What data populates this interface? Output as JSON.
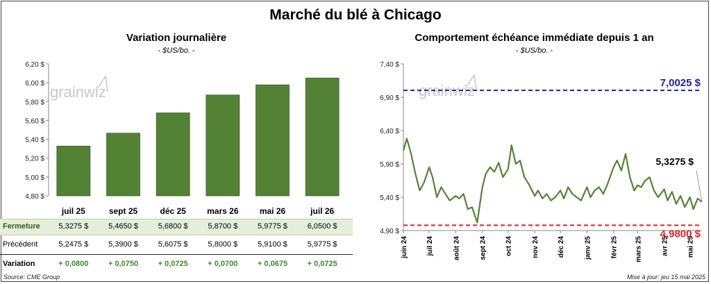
{
  "title": "Marché du blé à Chicago",
  "logo_text": "grainwiz",
  "chart_data": [
    {
      "type": "bar",
      "title": "Variation journalière",
      "subtitle": "- $US/bo. -",
      "categories": [
        "juil 25",
        "sept 25",
        "déc 25",
        "mars 26",
        "mai 26",
        "juil 26"
      ],
      "values": [
        5.3275,
        5.465,
        5.68,
        5.87,
        5.9775,
        6.05
      ],
      "ylim": [
        4.8,
        6.2
      ],
      "yticks": [
        "4,80 $",
        "5,00 $",
        "5,20 $",
        "5,40 $",
        "5,60 $",
        "5,80 $",
        "6,00 $",
        "6,20 $"
      ],
      "ytick_values": [
        4.8,
        5.0,
        5.2,
        5.4,
        5.6,
        5.8,
        6.0,
        6.2
      ],
      "bar_color": "#548235",
      "grid": false
    },
    {
      "type": "line",
      "title": "Comportement échéance immédiate depuis 1 an",
      "subtitle": "- $US/bo. -",
      "x": [
        "2024-06-01",
        "2024-06-05",
        "2024-06-10",
        "2024-06-15",
        "2024-06-20",
        "2024-06-25",
        "2024-07-01",
        "2024-07-05",
        "2024-07-10",
        "2024-07-15",
        "2024-07-20",
        "2024-07-25",
        "2024-08-01",
        "2024-08-05",
        "2024-08-10",
        "2024-08-15",
        "2024-08-20",
        "2024-08-26",
        "2024-09-01",
        "2024-09-05",
        "2024-09-10",
        "2024-09-15",
        "2024-09-20",
        "2024-09-25",
        "2024-10-01",
        "2024-10-05",
        "2024-10-10",
        "2024-10-15",
        "2024-10-20",
        "2024-10-25",
        "2024-11-01",
        "2024-11-05",
        "2024-11-10",
        "2024-11-15",
        "2024-11-20",
        "2024-11-25",
        "2024-12-01",
        "2024-12-05",
        "2024-12-10",
        "2024-12-15",
        "2024-12-20",
        "2024-12-25",
        "2025-01-01",
        "2025-01-05",
        "2025-01-10",
        "2025-01-15",
        "2025-01-20",
        "2025-01-25",
        "2025-02-01",
        "2025-02-05",
        "2025-02-10",
        "2025-02-15",
        "2025-02-20",
        "2025-02-25",
        "2025-03-01",
        "2025-03-05",
        "2025-03-10",
        "2025-03-15",
        "2025-03-20",
        "2025-03-25",
        "2025-04-01",
        "2025-04-05",
        "2025-04-10",
        "2025-04-15",
        "2025-04-20",
        "2025-04-25",
        "2025-05-01",
        "2025-05-05",
        "2025-05-10",
        "2025-05-15"
      ],
      "y": [
        6.1,
        6.28,
        6.05,
        5.75,
        5.5,
        5.62,
        5.85,
        5.7,
        5.4,
        5.55,
        5.45,
        5.35,
        5.42,
        5.38,
        5.45,
        5.22,
        5.25,
        5.02,
        5.55,
        5.75,
        5.85,
        5.78,
        5.92,
        5.7,
        5.82,
        6.18,
        5.9,
        5.95,
        5.7,
        5.6,
        5.42,
        5.5,
        5.38,
        5.45,
        5.35,
        5.4,
        5.5,
        5.38,
        5.55,
        5.45,
        5.4,
        5.35,
        5.55,
        5.4,
        5.5,
        5.55,
        5.45,
        5.6,
        5.85,
        5.95,
        5.8,
        6.05,
        5.7,
        5.5,
        5.58,
        5.55,
        5.65,
        5.7,
        5.5,
        5.4,
        5.52,
        5.35,
        5.48,
        5.3,
        5.42,
        5.25,
        5.4,
        5.22,
        5.38,
        5.33
      ],
      "xticks": [
        "juin 24",
        "juil 24",
        "août 24",
        "sept 24",
        "oct 24",
        "nov 24",
        "déc 24",
        "janv 25",
        "févr 25",
        "mars 25",
        "avr 25",
        "mai 25"
      ],
      "xtick_dates": [
        "2024-06-01",
        "2024-07-01",
        "2024-08-01",
        "2024-09-01",
        "2024-10-01",
        "2024-11-01",
        "2024-12-01",
        "2025-01-01",
        "2025-02-01",
        "2025-03-01",
        "2025-04-01",
        "2025-05-01"
      ],
      "ylim": [
        4.9,
        7.4
      ],
      "yticks": [
        "4,90 $",
        "5,40 $",
        "5,90 $",
        "6,40 $",
        "6,90 $",
        "7,40 $"
      ],
      "ytick_values": [
        4.9,
        5.4,
        5.9,
        6.4,
        6.9,
        7.4
      ],
      "line_color": "#548235",
      "ref_high": {
        "value": 7.0025,
        "label": "7,0025 $",
        "color": "#1f1fa0"
      },
      "ref_low": {
        "value": 4.98,
        "label": "4,9800 $",
        "color": "#e02020"
      },
      "last": {
        "value": 5.3275,
        "label": "5,3275 $"
      }
    }
  ],
  "table": {
    "rows": [
      {
        "label": "Fermeture",
        "cells": [
          "5,3275  $",
          "5,4650  $",
          "5,6800  $",
          "5,8700  $",
          "5,9775  $",
          "6,0500  $"
        ]
      },
      {
        "label": "Précédent",
        "cells": [
          "5,2475  $",
          "5,3900  $",
          "5,6075  $",
          "5,8000  $",
          "5,9100  $",
          "5,9775  $"
        ]
      },
      {
        "label": "Variation",
        "cells": [
          "+ 0,0800",
          "+ 0,0750",
          "+ 0,0725",
          "+ 0,0700",
          "+ 0,0675",
          "+ 0,0725"
        ]
      }
    ]
  },
  "footer": {
    "source": "Source: CME Group",
    "updated": "Mise à jour: jeu 15 mai 2025"
  }
}
